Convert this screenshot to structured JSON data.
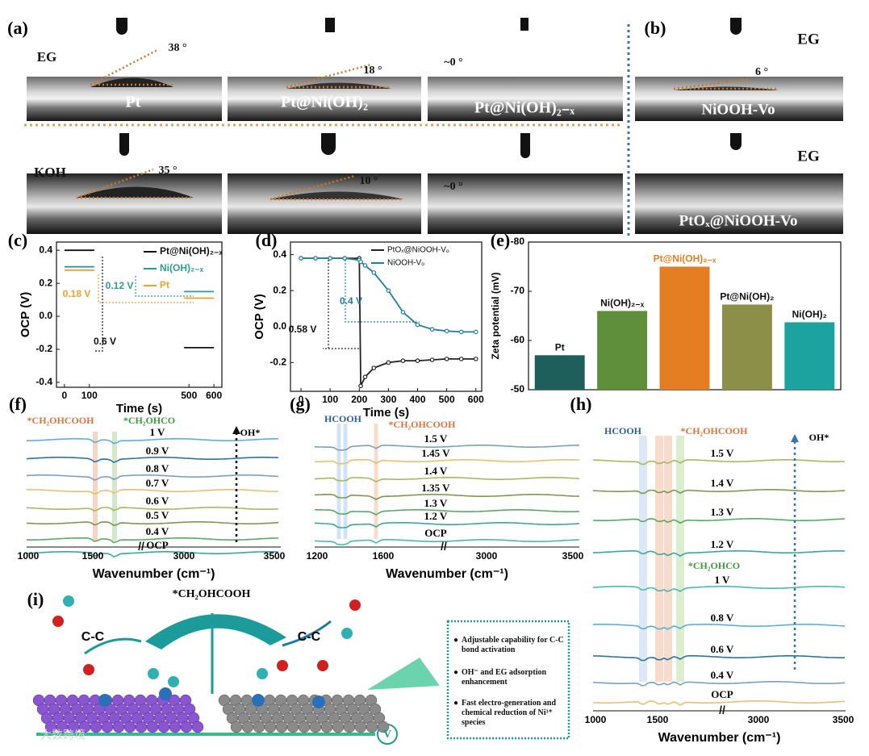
{
  "panel_labels": [
    "(a)",
    "(b)",
    "(c)",
    "(d)",
    "(e)",
    "(f)",
    "(g)",
    "(h)",
    "(i)"
  ],
  "contact_angle": {
    "rows": [
      {
        "label": "EG",
        "angles": [
          "38 °",
          "18 °",
          "~0 °"
        ]
      },
      {
        "label": "KOH",
        "angles": [
          "35 °",
          "10 °",
          "~0 °"
        ]
      }
    ],
    "samples": [
      "Pt",
      "Pt@Ni(OH)₂",
      "Pt@Ni(OH)₂₋ₓ"
    ],
    "b": {
      "labels": [
        "EG",
        "EG"
      ],
      "angle": "6 °",
      "samples": [
        "NiOOH-Vo",
        "PtOₓ@NiOOH-Vo"
      ]
    }
  },
  "chart_data": [
    {
      "type": "line",
      "xlabel": "Time (s)",
      "ylabel": "OCP (V)",
      "x": [
        0,
        120,
        300,
        480,
        600
      ],
      "series": [
        {
          "name": "Pt@Ni(OH)₂₋ₓ",
          "color": "#111111",
          "values": [
            0.4,
            0.4,
            null,
            -0.19,
            -0.19
          ]
        },
        {
          "name": "Ni(OH)₂₋ₓ",
          "color": "#2a9d8f",
          "values": [
            0.3,
            0.3,
            null,
            0.15,
            0.15
          ]
        },
        {
          "name": "Pt",
          "color": "#f0a030",
          "values": [
            0.28,
            0.28,
            null,
            0.11,
            0.11
          ]
        }
      ],
      "annotations": [
        "0.18 V",
        "0.12 V",
        "0.6 V"
      ],
      "xlim": [
        -32,
        632
      ],
      "xticks": [
        0,
        100,
        500,
        600
      ],
      "ylim": [
        -0.43,
        0.45
      ],
      "yticks": [
        -0.4,
        -0.2,
        {
          "value": 0,
          "label": "0.0"
        },
        0.2,
        0.4
      ]
    },
    {
      "type": "line",
      "xlabel": "Time (s)",
      "ylabel": "OCP (V)",
      "markers": true,
      "x": [
        0,
        50,
        100,
        150,
        200,
        205,
        220,
        250,
        300,
        350,
        400,
        450,
        500,
        550,
        600
      ],
      "series": [
        {
          "name": "PtOₓ@NiOOH-Vₒ",
          "color": "#222222",
          "values": [
            0.38,
            0.38,
            0.38,
            0.38,
            0.38,
            -0.33,
            -0.28,
            -0.23,
            -0.2,
            -0.19,
            -0.19,
            -0.185,
            -0.18,
            -0.18,
            -0.18
          ]
        },
        {
          "name": "NiOOH-Vₒ",
          "color": "#1f7fa0",
          "values": [
            0.38,
            0.38,
            0.38,
            0.38,
            0.37,
            0.36,
            0.34,
            0.3,
            0.2,
            0.08,
            0.01,
            -0.015,
            -0.025,
            -0.03,
            -0.03
          ]
        }
      ],
      "annotations": [
        "0.58 V",
        "0.4 V"
      ],
      "xlim": [
        -36,
        620
      ],
      "xticks": [
        0,
        100,
        200,
        300,
        400,
        500,
        600
      ],
      "ylim": [
        -0.36,
        0.47
      ],
      "yticks": [
        -0.2,
        {
          "value": 0,
          "label": "0.0"
        },
        0.2,
        0.4
      ]
    },
    {
      "type": "bar",
      "ylabel": "Zeta potential (mV)",
      "categories": [
        "Pt",
        "Ni(OH)₂₋ₓ",
        "Pt@Ni(OH)₂₋ₓ",
        "Pt@Ni(OH)₂",
        "Ni(OH)₂"
      ],
      "values": [
        -57,
        -66,
        -75,
        -67.3,
        -63.7
      ],
      "colors": [
        "#1f5f5b",
        "#5f8f3a",
        "#e57e22",
        "#8b8f48",
        "#1ca3a0"
      ],
      "label_colors": [
        "#111111",
        "#111111",
        "#e57e22",
        "#111111",
        "#111111"
      ],
      "ylim": [
        -50,
        -80
      ],
      "yticks": [
        -50,
        -60,
        -70,
        -80
      ]
    }
  ],
  "spectra": [
    {
      "xticks": [
        "1000",
        "1500",
        "3000",
        "3500"
      ],
      "xlabel": "Wavenumber (cm⁻¹)",
      "bands": [
        "*CH₂OHCOOH",
        "*CH₂OHCO"
      ],
      "arrow": "OH*",
      "curves": [
        "1 V",
        "0.9 V",
        "0.8 V",
        "0.7 V",
        "0.6 V",
        "0.5 V",
        "0.4 V",
        "OCP"
      ]
    },
    {
      "xticks": [
        "1200",
        "1600",
        "3000",
        "3500"
      ],
      "xlabel": "Wavenumber (cm⁻¹)",
      "bands": [
        "HCOOH",
        "*CH₂OHCOOH"
      ],
      "curves": [
        "1.5 V",
        "1.45 V",
        "1.4 V",
        "1.35 V",
        "1.3 V",
        "1.2 V",
        "OCP"
      ]
    },
    {
      "xticks": [
        "1000",
        "1500",
        "3000",
        "3500"
      ],
      "xlabel": "Wavenumber (cm⁻¹)",
      "bands": [
        "HCOOH",
        "*CH₂OHCOOH",
        "*CH₂OHCO"
      ],
      "arrow": "OH*",
      "curves": [
        "1.5 V",
        "1.4 V",
        "1.3 V",
        "1.2 V",
        "1 V",
        "0.8 V",
        "0.6 V",
        "0.4 V",
        "OCP"
      ]
    }
  ],
  "scheme": {
    "title": "*CH₂OHCOOH",
    "left": "C-C",
    "right": "C-C",
    "badge": "V",
    "bullets": [
      "Adjustable capability for C-C bond activation",
      "OH⁻ and EG adsorption enhancement",
      "Fast electro-generation and chemical reduction of Ni³⁺ species"
    ]
  },
  "watermark": "大数跨境"
}
